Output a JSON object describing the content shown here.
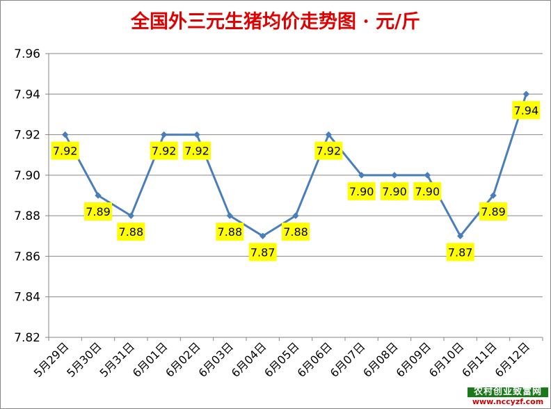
{
  "chart_data": {
    "type": "line",
    "title": "全国外三元生猪均价走势图 · 元/斤",
    "categories": [
      "5月29日",
      "5月30日",
      "5月31日",
      "6月01日",
      "6月02日",
      "6月03日",
      "6月04日",
      "6月05日",
      "6月06日",
      "6月07日",
      "6月08日",
      "6月09日",
      "6月10日",
      "6月11日",
      "6月12日"
    ],
    "values": [
      7.92,
      7.89,
      7.88,
      7.92,
      7.92,
      7.88,
      7.87,
      7.88,
      7.92,
      7.9,
      7.9,
      7.9,
      7.87,
      7.89,
      7.94
    ],
    "data_labels": [
      "7.92",
      "7.89",
      "7.88",
      "7.92",
      "7.92",
      "7.88",
      "7.87",
      "7.88",
      "7.92",
      "7.90",
      "7.90",
      "7.90",
      "7.87",
      "7.89",
      "7.94"
    ],
    "y_ticks": [
      "7.82",
      "7.84",
      "7.86",
      "7.88",
      "7.90",
      "7.92",
      "7.94",
      "7.96"
    ],
    "ylim": [
      7.82,
      7.96
    ],
    "xlabel": "",
    "ylabel": "",
    "grid": true,
    "legend": "none",
    "colors": {
      "title": "#e00000",
      "line": "#4a7ebb",
      "marker": "#4a7ebb",
      "label_bg": "#ffff00",
      "gridline": "#868686"
    }
  },
  "watermark": {
    "line1": "农村创业致富网",
    "line2": "www.nccyzf.com"
  }
}
